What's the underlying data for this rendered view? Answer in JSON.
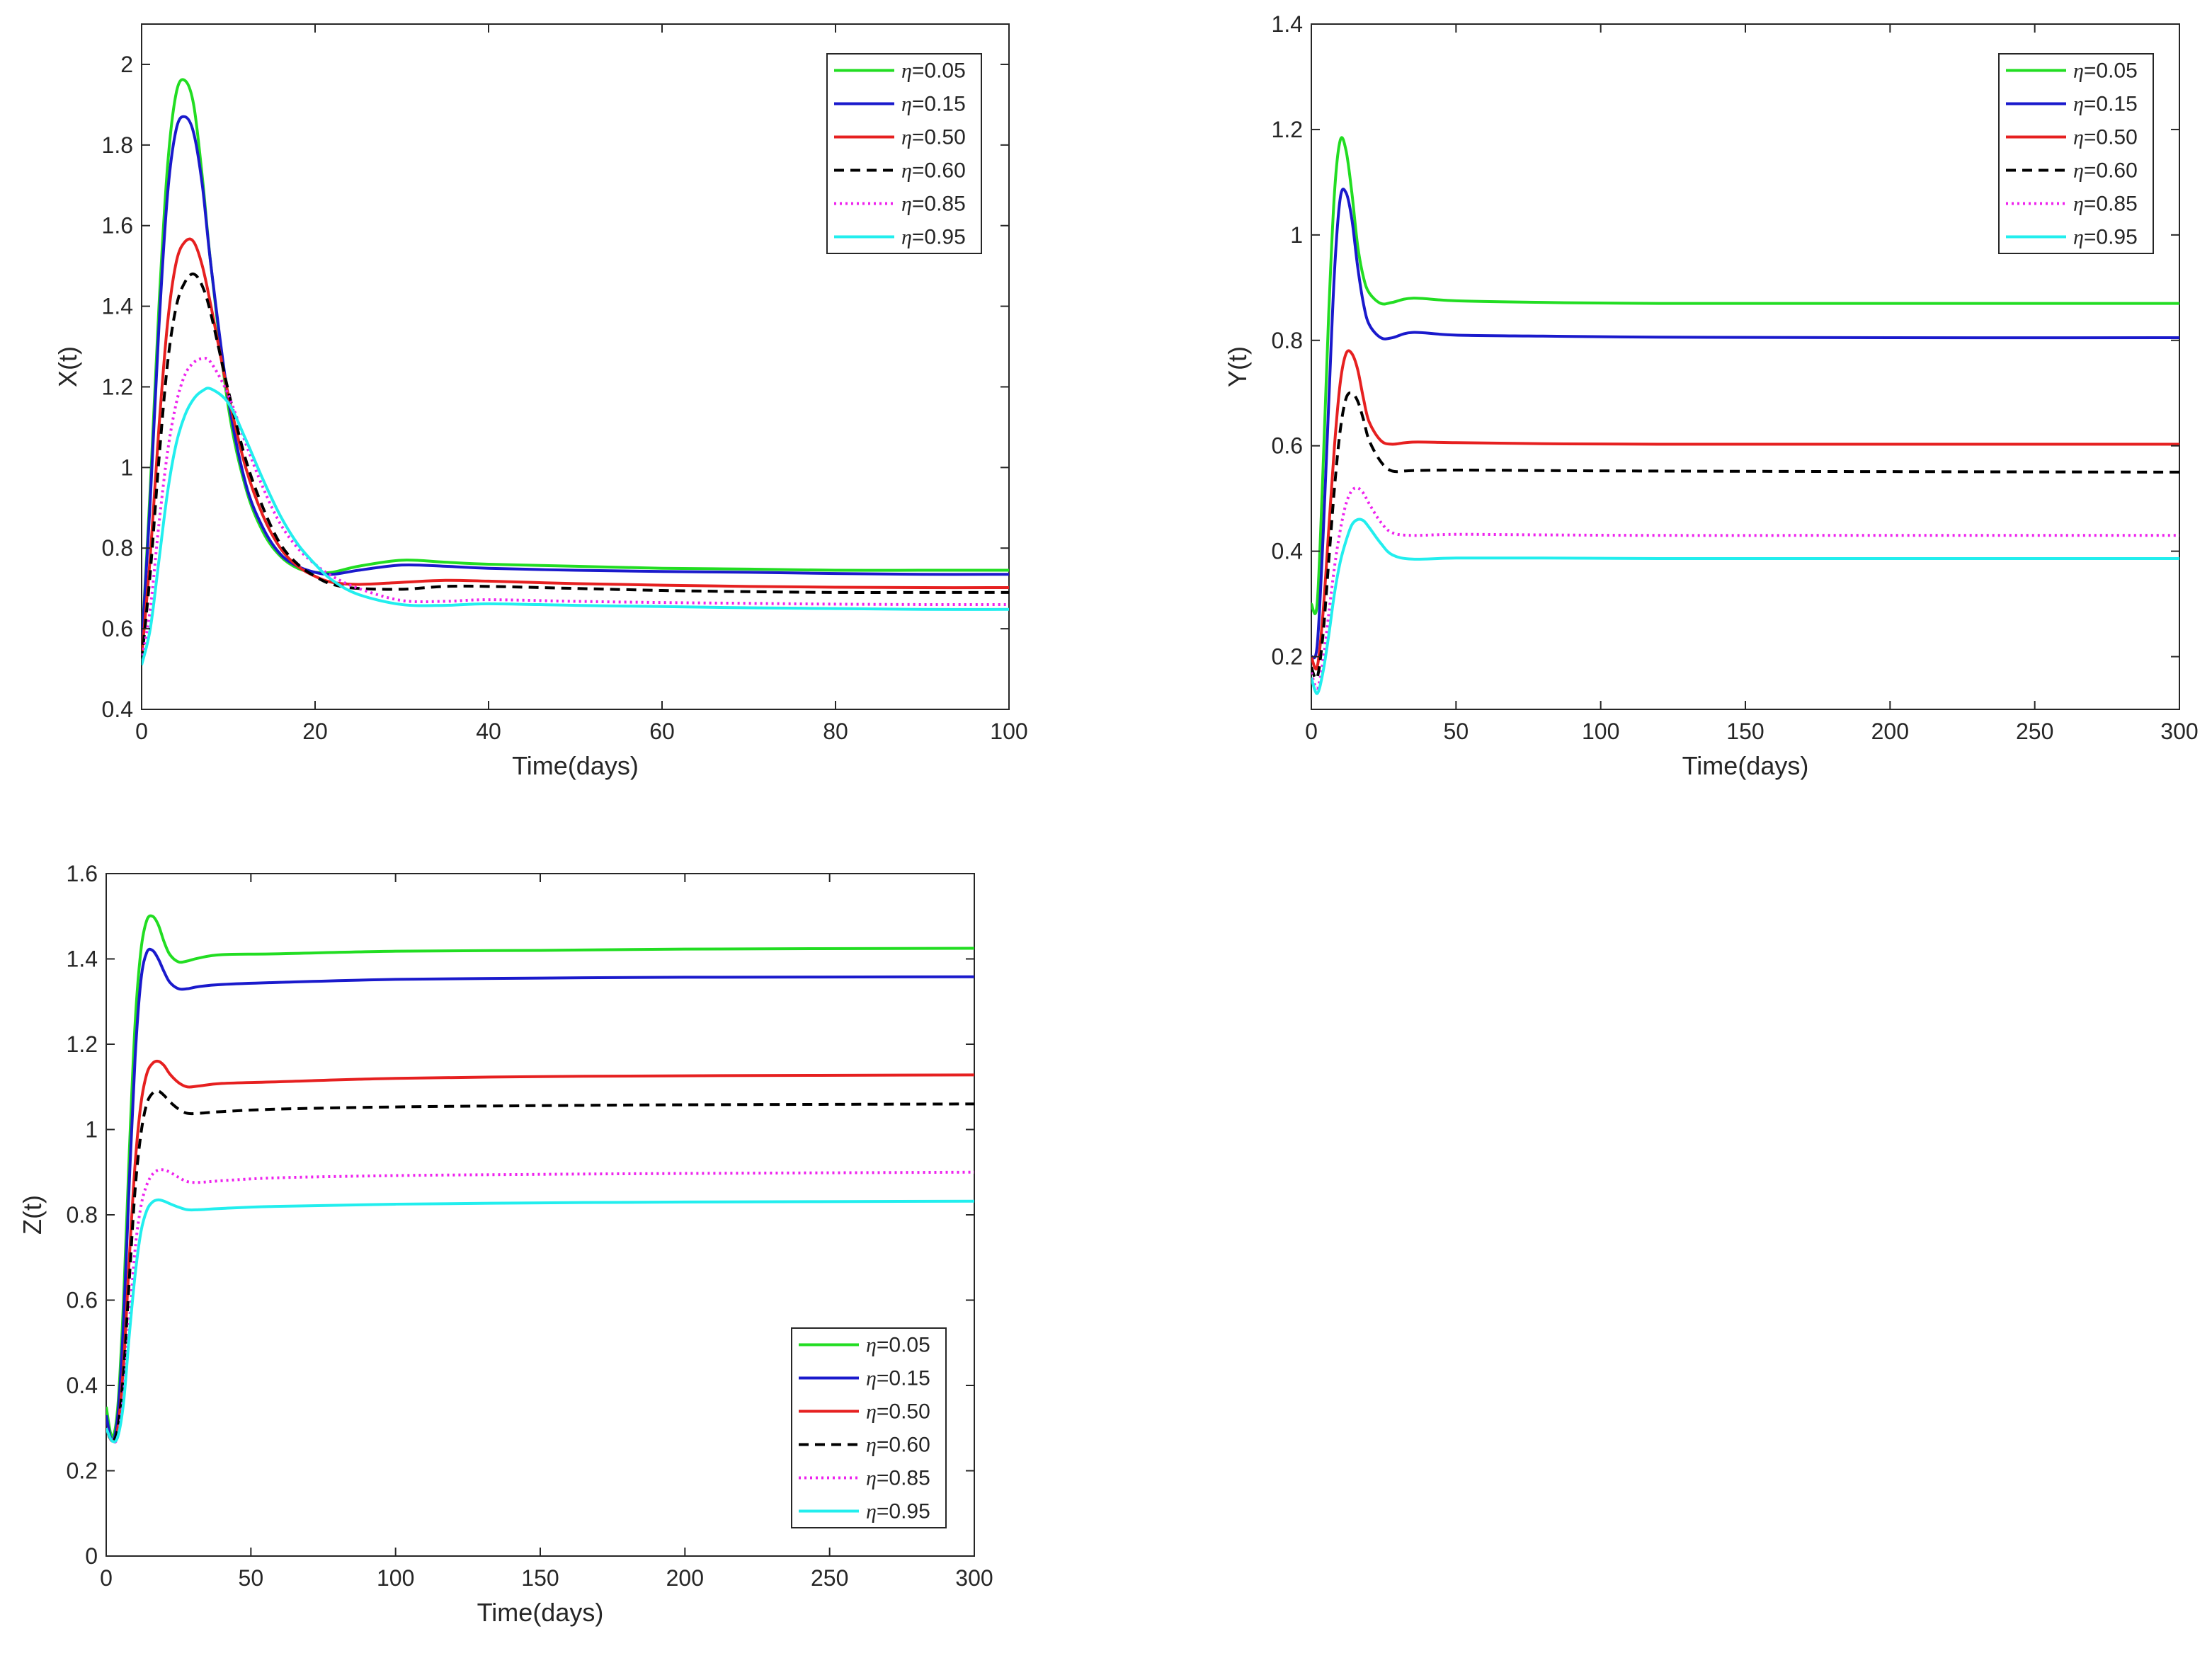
{
  "figure": {
    "background": "#ffffff",
    "axis_color": "#262626"
  },
  "chart_data": [
    {
      "type": "line",
      "id": "x-panel",
      "title": "",
      "xlabel": "Time(days)",
      "ylabel": "X(t)",
      "xlim": [
        0,
        100
      ],
      "ylim": [
        0.4,
        2.1
      ],
      "xticks": [
        0,
        20,
        40,
        60,
        80,
        100
      ],
      "yticks": [
        0.4,
        0.6,
        0.8,
        1,
        1.2,
        1.4,
        1.6,
        1.8,
        2
      ],
      "grid": false,
      "legend_position": "top-right",
      "series": [
        {
          "name": "η=0.05",
          "eta": "0.05",
          "color": "#22dd22",
          "dash": "solid",
          "x": [
            0,
            1,
            2,
            3,
            4,
            5,
            6,
            7,
            8,
            10,
            12,
            14,
            16,
            18,
            20,
            22,
            25,
            30,
            35,
            40,
            50,
            60,
            70,
            80,
            90,
            100
          ],
          "y": [
            0.55,
            0.95,
            1.4,
            1.75,
            1.93,
            1.96,
            1.9,
            1.72,
            1.5,
            1.15,
            0.95,
            0.84,
            0.78,
            0.75,
            0.74,
            0.74,
            0.755,
            0.77,
            0.765,
            0.76,
            0.755,
            0.75,
            0.748,
            0.745,
            0.745,
            0.745
          ]
        },
        {
          "name": "η=0.15",
          "eta": "0.15",
          "color": "#1a1acc",
          "dash": "solid",
          "x": [
            0,
            1,
            2,
            3,
            4,
            5,
            6,
            7,
            8,
            10,
            12,
            14,
            16,
            18,
            20,
            22,
            25,
            30,
            35,
            40,
            50,
            60,
            70,
            80,
            90,
            100
          ],
          "y": [
            0.55,
            0.92,
            1.35,
            1.68,
            1.84,
            1.87,
            1.83,
            1.7,
            1.5,
            1.17,
            0.96,
            0.85,
            0.785,
            0.755,
            0.74,
            0.735,
            0.745,
            0.758,
            0.755,
            0.75,
            0.745,
            0.742,
            0.74,
            0.737,
            0.735,
            0.735
          ]
        },
        {
          "name": "η=0.50",
          "eta": "0.50",
          "color": "#e62020",
          "dash": "solid",
          "x": [
            0,
            1,
            2,
            3,
            4,
            5,
            6,
            7,
            8,
            10,
            12,
            14,
            16,
            18,
            20,
            22,
            25,
            30,
            35,
            40,
            50,
            60,
            70,
            80,
            90,
            100
          ],
          "y": [
            0.53,
            0.78,
            1.1,
            1.36,
            1.51,
            1.56,
            1.56,
            1.5,
            1.4,
            1.18,
            1.0,
            0.88,
            0.8,
            0.755,
            0.73,
            0.715,
            0.71,
            0.715,
            0.72,
            0.718,
            0.712,
            0.708,
            0.705,
            0.703,
            0.702,
            0.702
          ]
        },
        {
          "name": "η=0.60",
          "eta": "0.60",
          "color": "#000000",
          "dash": "dashed",
          "x": [
            0,
            1,
            2,
            3,
            4,
            5,
            6,
            7,
            8,
            10,
            12,
            14,
            16,
            18,
            20,
            22,
            25,
            30,
            35,
            40,
            50,
            60,
            70,
            80,
            90,
            100
          ],
          "y": [
            0.52,
            0.74,
            1.02,
            1.26,
            1.4,
            1.46,
            1.48,
            1.45,
            1.38,
            1.19,
            1.02,
            0.9,
            0.81,
            0.76,
            0.73,
            0.71,
            0.7,
            0.698,
            0.705,
            0.705,
            0.7,
            0.695,
            0.692,
            0.69,
            0.69,
            0.69
          ]
        },
        {
          "name": "η=0.85",
          "eta": "0.85",
          "color": "#ee22ee",
          "dash": "dotted",
          "x": [
            0,
            1,
            2,
            3,
            4,
            5,
            6,
            7,
            8,
            10,
            12,
            14,
            16,
            18,
            20,
            22,
            25,
            30,
            35,
            40,
            50,
            60,
            70,
            80,
            90,
            100
          ],
          "y": [
            0.52,
            0.65,
            0.86,
            1.04,
            1.16,
            1.23,
            1.26,
            1.27,
            1.26,
            1.18,
            1.06,
            0.95,
            0.86,
            0.8,
            0.76,
            0.73,
            0.7,
            0.67,
            0.668,
            0.672,
            0.668,
            0.665,
            0.663,
            0.661,
            0.66,
            0.66
          ]
        },
        {
          "name": "η=0.95",
          "eta": "0.95",
          "color": "#22eeee",
          "dash": "solid",
          "x": [
            0,
            1,
            2,
            3,
            4,
            5,
            6,
            7,
            8,
            10,
            12,
            14,
            16,
            18,
            20,
            22,
            25,
            30,
            35,
            40,
            50,
            60,
            70,
            80,
            90,
            100
          ],
          "y": [
            0.51,
            0.6,
            0.77,
            0.94,
            1.06,
            1.13,
            1.17,
            1.19,
            1.195,
            1.16,
            1.07,
            0.97,
            0.88,
            0.81,
            0.76,
            0.72,
            0.685,
            0.66,
            0.658,
            0.662,
            0.658,
            0.655,
            0.652,
            0.65,
            0.648,
            0.648
          ]
        }
      ]
    },
    {
      "type": "line",
      "id": "y-panel",
      "title": "",
      "xlabel": "Time(days)",
      "ylabel": "Y(t)",
      "xlim": [
        0,
        300
      ],
      "ylim": [
        0.1,
        1.4
      ],
      "xticks": [
        0,
        50,
        100,
        150,
        200,
        250,
        300
      ],
      "yticks": [
        0.2,
        0.4,
        0.6,
        0.8,
        1,
        1.2,
        1.4
      ],
      "grid": false,
      "legend_position": "top-right",
      "series": [
        {
          "name": "η=0.05",
          "eta": "0.05",
          "color": "#22dd22",
          "dash": "solid",
          "x": [
            0,
            2,
            4,
            6,
            8,
            10,
            12,
            14,
            16,
            18,
            20,
            24,
            28,
            35,
            50,
            80,
            120,
            200,
            300
          ],
          "y": [
            0.3,
            0.3,
            0.55,
            0.85,
            1.08,
            1.18,
            1.16,
            1.08,
            0.98,
            0.92,
            0.89,
            0.87,
            0.872,
            0.88,
            0.875,
            0.872,
            0.87,
            0.87,
            0.87
          ]
        },
        {
          "name": "η=0.15",
          "eta": "0.15",
          "color": "#1a1acc",
          "dash": "solid",
          "x": [
            0,
            2,
            4,
            6,
            8,
            10,
            12,
            14,
            16,
            18,
            20,
            24,
            28,
            35,
            50,
            80,
            120,
            200,
            300
          ],
          "y": [
            0.2,
            0.22,
            0.42,
            0.68,
            0.93,
            1.07,
            1.08,
            1.03,
            0.94,
            0.87,
            0.83,
            0.805,
            0.805,
            0.815,
            0.81,
            0.808,
            0.806,
            0.805,
            0.805
          ]
        },
        {
          "name": "η=0.50",
          "eta": "0.50",
          "color": "#e62020",
          "dash": "solid",
          "x": [
            0,
            2,
            4,
            6,
            8,
            10,
            12,
            14,
            16,
            18,
            20,
            24,
            28,
            35,
            50,
            80,
            120,
            200,
            300
          ],
          "y": [
            0.2,
            0.18,
            0.28,
            0.44,
            0.6,
            0.72,
            0.775,
            0.775,
            0.745,
            0.69,
            0.645,
            0.61,
            0.603,
            0.607,
            0.606,
            0.604,
            0.603,
            0.603,
            0.603
          ]
        },
        {
          "name": "η=0.60",
          "eta": "0.60",
          "color": "#000000",
          "dash": "dashed",
          "x": [
            0,
            2,
            4,
            6,
            8,
            10,
            12,
            14,
            16,
            18,
            20,
            24,
            28,
            35,
            50,
            80,
            120,
            200,
            300
          ],
          "y": [
            0.18,
            0.16,
            0.24,
            0.38,
            0.52,
            0.63,
            0.69,
            0.7,
            0.685,
            0.65,
            0.61,
            0.57,
            0.552,
            0.553,
            0.554,
            0.553,
            0.552,
            0.551,
            0.55
          ]
        },
        {
          "name": "η=0.85",
          "eta": "0.85",
          "color": "#ee22ee",
          "dash": "dotted",
          "x": [
            0,
            2,
            4,
            6,
            8,
            10,
            12,
            14,
            16,
            18,
            20,
            24,
            28,
            35,
            50,
            80,
            120,
            200,
            300
          ],
          "y": [
            0.17,
            0.14,
            0.19,
            0.28,
            0.37,
            0.44,
            0.49,
            0.515,
            0.52,
            0.51,
            0.49,
            0.455,
            0.435,
            0.43,
            0.432,
            0.431,
            0.43,
            0.43,
            0.43
          ]
        },
        {
          "name": "η=0.95",
          "eta": "0.95",
          "color": "#22eeee",
          "dash": "solid",
          "x": [
            0,
            2,
            4,
            6,
            8,
            10,
            12,
            14,
            16,
            18,
            20,
            24,
            28,
            35,
            50,
            80,
            120,
            200,
            300
          ],
          "y": [
            0.16,
            0.13,
            0.17,
            0.24,
            0.32,
            0.38,
            0.42,
            0.45,
            0.46,
            0.458,
            0.445,
            0.415,
            0.393,
            0.385,
            0.387,
            0.387,
            0.386,
            0.386,
            0.386
          ]
        }
      ]
    },
    {
      "type": "line",
      "id": "z-panel",
      "title": "",
      "xlabel": "Time(days)",
      "ylabel": "Z(t)",
      "xlim": [
        0,
        300
      ],
      "ylim": [
        0,
        1.6
      ],
      "xticks": [
        0,
        50,
        100,
        150,
        200,
        250,
        300
      ],
      "yticks": [
        0,
        0.2,
        0.4,
        0.6,
        0.8,
        1,
        1.2,
        1.4,
        1.6
      ],
      "grid": false,
      "legend_position": "bottom-right",
      "series": [
        {
          "name": "η=0.05",
          "eta": "0.05",
          "color": "#22dd22",
          "dash": "solid",
          "x": [
            0,
            2,
            4,
            6,
            8,
            10,
            12,
            14,
            16,
            18,
            20,
            22,
            25,
            28,
            32,
            40,
            60,
            100,
            150,
            200,
            300
          ],
          "y": [
            0.35,
            0.28,
            0.35,
            0.6,
            0.95,
            1.25,
            1.42,
            1.49,
            1.5,
            1.48,
            1.44,
            1.41,
            1.393,
            1.395,
            1.402,
            1.41,
            1.412,
            1.418,
            1.42,
            1.423,
            1.425
          ]
        },
        {
          "name": "η=0.15",
          "eta": "0.15",
          "color": "#1a1acc",
          "dash": "solid",
          "x": [
            0,
            2,
            4,
            6,
            8,
            10,
            12,
            14,
            16,
            18,
            20,
            22,
            25,
            28,
            32,
            40,
            60,
            100,
            150,
            200,
            300
          ],
          "y": [
            0.33,
            0.27,
            0.33,
            0.55,
            0.88,
            1.17,
            1.35,
            1.415,
            1.42,
            1.4,
            1.37,
            1.345,
            1.33,
            1.33,
            1.335,
            1.34,
            1.345,
            1.352,
            1.355,
            1.357,
            1.358
          ]
        },
        {
          "name": "η=0.50",
          "eta": "0.50",
          "color": "#e62020",
          "dash": "solid",
          "x": [
            0,
            2,
            4,
            6,
            8,
            10,
            12,
            14,
            16,
            18,
            20,
            22,
            25,
            28,
            32,
            40,
            60,
            100,
            150,
            200,
            300
          ],
          "y": [
            0.3,
            0.27,
            0.3,
            0.45,
            0.7,
            0.92,
            1.06,
            1.13,
            1.155,
            1.16,
            1.15,
            1.13,
            1.11,
            1.1,
            1.102,
            1.108,
            1.112,
            1.12,
            1.124,
            1.126,
            1.128
          ]
        },
        {
          "name": "η=0.60",
          "eta": "0.60",
          "color": "#000000",
          "dash": "dashed",
          "x": [
            0,
            2,
            4,
            6,
            8,
            10,
            12,
            14,
            16,
            18,
            20,
            22,
            25,
            28,
            32,
            40,
            60,
            100,
            150,
            200,
            300
          ],
          "y": [
            0.3,
            0.27,
            0.3,
            0.43,
            0.65,
            0.86,
            0.99,
            1.06,
            1.085,
            1.09,
            1.08,
            1.065,
            1.048,
            1.038,
            1.038,
            1.042,
            1.048,
            1.053,
            1.056,
            1.058,
            1.06
          ]
        },
        {
          "name": "η=0.85",
          "eta": "0.85",
          "color": "#ee22ee",
          "dash": "dotted",
          "x": [
            0,
            2,
            4,
            6,
            8,
            10,
            12,
            14,
            16,
            18,
            20,
            22,
            25,
            28,
            32,
            40,
            60,
            100,
            150,
            200,
            300
          ],
          "y": [
            0.3,
            0.27,
            0.28,
            0.38,
            0.55,
            0.72,
            0.82,
            0.87,
            0.895,
            0.905,
            0.905,
            0.9,
            0.888,
            0.878,
            0.876,
            0.88,
            0.887,
            0.892,
            0.895,
            0.897,
            0.9
          ]
        },
        {
          "name": "η=0.95",
          "eta": "0.95",
          "color": "#22eeee",
          "dash": "solid",
          "x": [
            0,
            2,
            4,
            6,
            8,
            10,
            12,
            14,
            16,
            18,
            20,
            22,
            25,
            28,
            32,
            40,
            60,
            100,
            150,
            200,
            300
          ],
          "y": [
            0.3,
            0.27,
            0.28,
            0.36,
            0.52,
            0.66,
            0.76,
            0.81,
            0.83,
            0.835,
            0.832,
            0.826,
            0.818,
            0.812,
            0.812,
            0.815,
            0.82,
            0.825,
            0.828,
            0.83,
            0.832
          ]
        }
      ]
    }
  ]
}
